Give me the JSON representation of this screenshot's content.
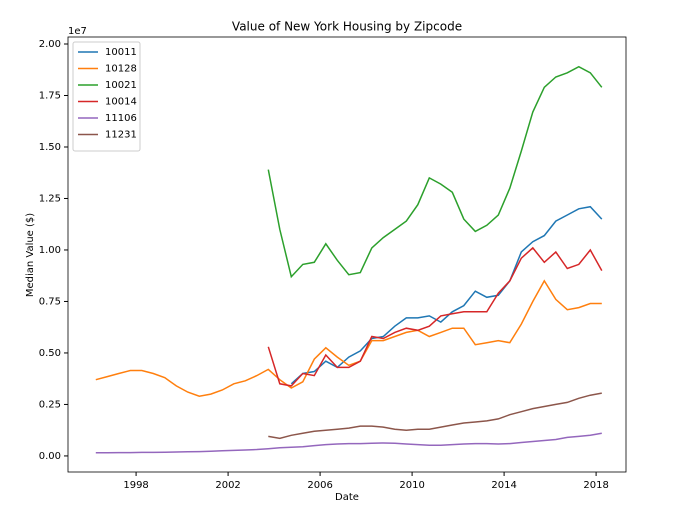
{
  "chart_data": {
    "type": "line",
    "title": "Value of New York Housing by Zipcode",
    "x_label": "Date",
    "y_label": "Median Value ($)",
    "y_offset_label": "1e7",
    "x": [
      1996.25,
      1996.75,
      1997.25,
      1997.75,
      1998.25,
      1998.75,
      1999.25,
      1999.75,
      2000.25,
      2000.75,
      2001.25,
      2001.75,
      2002.25,
      2002.75,
      2003.25,
      2003.75,
      2004.25,
      2004.75,
      2005.25,
      2005.75,
      2006.25,
      2006.75,
      2007.25,
      2007.75,
      2008.25,
      2008.75,
      2009.25,
      2009.75,
      2010.25,
      2010.75,
      2011.25,
      2011.75,
      2012.25,
      2012.75,
      2013.25,
      2013.75,
      2014.25,
      2014.75,
      2015.25,
      2015.75,
      2016.25,
      2016.75,
      2017.25,
      2017.75,
      2018.25
    ],
    "xlim": [
      1995.04,
      2019.3
    ],
    "xticks": [
      1998,
      2002,
      2006,
      2010,
      2014,
      2018
    ],
    "ylim": [
      -0.078,
      2.034
    ],
    "yticks": [
      {
        "value": 0,
        "label": "0.00"
      },
      0.25,
      {
        "value": 0.5,
        "label": "0.50"
      },
      0.75,
      {
        "value": 1,
        "label": "1.00"
      },
      1.25,
      {
        "value": 1.5,
        "label": "1.50"
      },
      1.75,
      {
        "value": 2,
        "label": "2.00"
      }
    ],
    "legend": "upper-left",
    "series": [
      {
        "name": "10011",
        "color": "#1f77b4",
        "values": [
          null,
          null,
          null,
          null,
          null,
          null,
          null,
          null,
          null,
          null,
          null,
          null,
          null,
          null,
          null,
          null,
          null,
          0.35,
          0.4,
          0.41,
          0.46,
          0.43,
          0.48,
          0.51,
          0.57,
          0.58,
          0.63,
          0.67,
          0.67,
          0.68,
          0.65,
          0.7,
          0.73,
          0.8,
          0.77,
          0.78,
          0.85,
          0.99,
          1.04,
          1.07,
          1.14,
          1.17,
          1.2,
          1.21,
          1.15
        ]
      },
      {
        "name": "10128",
        "color": "#ff7f0e",
        "values": [
          0.37,
          0.385,
          0.4,
          0.415,
          0.415,
          0.4,
          0.38,
          0.34,
          0.31,
          0.29,
          0.3,
          0.32,
          0.35,
          0.365,
          0.39,
          0.42,
          0.37,
          0.33,
          0.36,
          0.47,
          0.525,
          0.48,
          0.44,
          0.46,
          0.56,
          0.56,
          0.58,
          0.6,
          0.61,
          0.58,
          0.6,
          0.62,
          0.62,
          0.54,
          0.55,
          0.56,
          0.55,
          0.64,
          0.75,
          0.85,
          0.76,
          0.71,
          0.72,
          0.74,
          0.74
        ]
      },
      {
        "name": "10021",
        "color": "#2ca02c",
        "values": [
          null,
          null,
          null,
          null,
          null,
          null,
          null,
          null,
          null,
          null,
          null,
          null,
          null,
          null,
          null,
          1.39,
          1.1,
          0.87,
          0.93,
          0.94,
          1.03,
          0.95,
          0.88,
          0.89,
          1.01,
          1.06,
          1.1,
          1.14,
          1.22,
          1.35,
          1.32,
          1.28,
          1.15,
          1.09,
          1.12,
          1.17,
          1.3,
          1.48,
          1.67,
          1.79,
          1.84,
          1.86,
          1.89,
          1.86,
          1.79
        ]
      },
      {
        "name": "10014",
        "color": "#d62728",
        "values": [
          null,
          null,
          null,
          null,
          null,
          null,
          null,
          null,
          null,
          null,
          null,
          null,
          null,
          null,
          null,
          0.53,
          0.35,
          0.34,
          0.4,
          0.39,
          0.49,
          0.43,
          0.43,
          0.46,
          0.58,
          0.57,
          0.6,
          0.62,
          0.61,
          0.63,
          0.68,
          0.69,
          0.7,
          0.7,
          0.7,
          0.79,
          0.85,
          0.96,
          1.01,
          0.94,
          0.99,
          0.91,
          0.93,
          1.0,
          0.9
        ]
      },
      {
        "name": "11106",
        "color": "#9467bd",
        "values": [
          0.015,
          0.015,
          0.016,
          0.016,
          0.017,
          0.017,
          0.018,
          0.019,
          0.02,
          0.021,
          0.023,
          0.025,
          0.027,
          0.029,
          0.031,
          0.035,
          0.04,
          0.042,
          0.045,
          0.05,
          0.055,
          0.058,
          0.06,
          0.06,
          0.062,
          0.063,
          0.062,
          0.058,
          0.055,
          0.052,
          0.052,
          0.055,
          0.058,
          0.06,
          0.06,
          0.058,
          0.06,
          0.065,
          0.07,
          0.075,
          0.08,
          0.09,
          0.095,
          0.1,
          0.11
        ]
      },
      {
        "name": "11231",
        "color": "#8c564b",
        "values": [
          null,
          null,
          null,
          null,
          null,
          null,
          null,
          null,
          null,
          null,
          null,
          null,
          null,
          null,
          null,
          0.095,
          0.085,
          0.1,
          0.11,
          0.12,
          0.125,
          0.13,
          0.135,
          0.145,
          0.145,
          0.14,
          0.13,
          0.125,
          0.13,
          0.13,
          0.14,
          0.15,
          0.16,
          0.165,
          0.17,
          0.18,
          0.2,
          0.215,
          0.23,
          0.24,
          0.25,
          0.26,
          0.28,
          0.295,
          0.305
        ]
      }
    ]
  }
}
